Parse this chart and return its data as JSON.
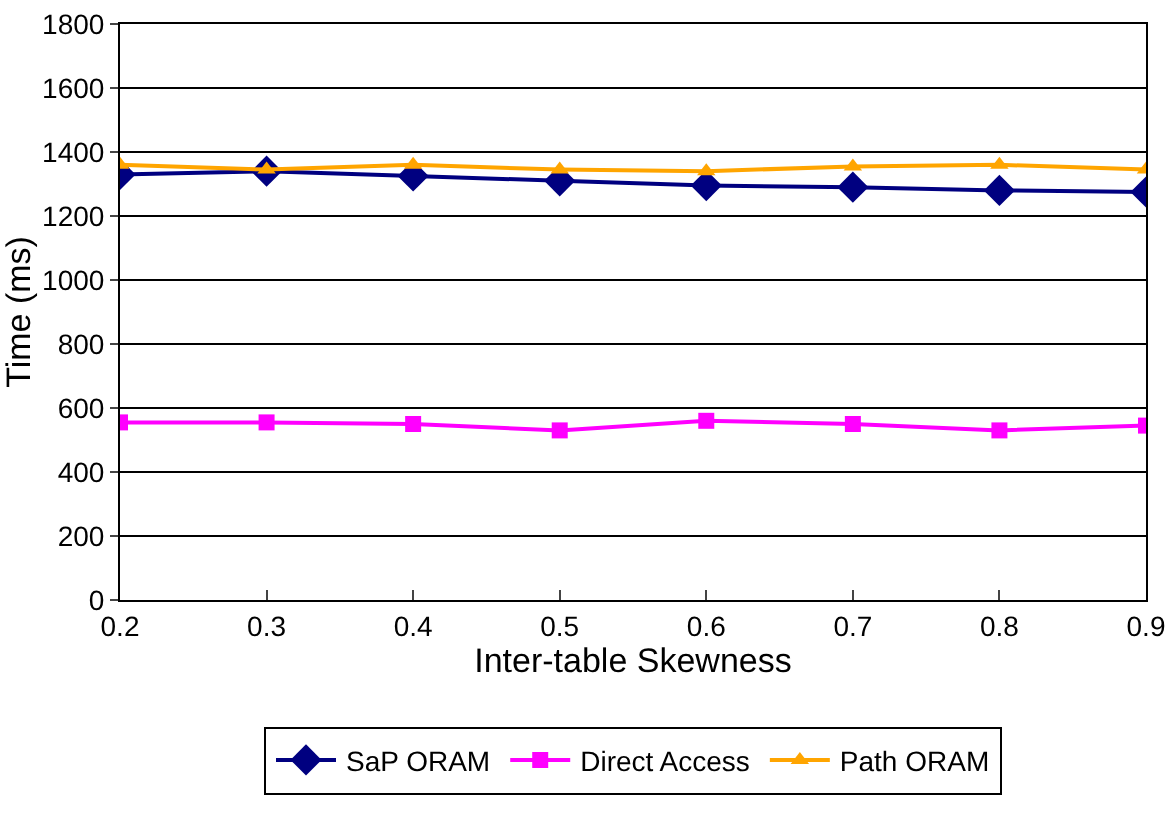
{
  "chart_data": {
    "type": "line",
    "xlabel": "Inter-table Skewness",
    "ylabel": "Time (ms)",
    "x": [
      0.2,
      0.3,
      0.4,
      0.5,
      0.6,
      0.7,
      0.8,
      0.9
    ],
    "series": [
      {
        "name": "SaP ORAM",
        "color": "#000080",
        "marker": "diamond",
        "values": [
          1330,
          1340,
          1325,
          1310,
          1295,
          1290,
          1280,
          1275
        ]
      },
      {
        "name": "Direct Access",
        "color": "#ff00ff",
        "marker": "square",
        "values": [
          555,
          555,
          550,
          530,
          560,
          550,
          530,
          545
        ]
      },
      {
        "name": "Path ORAM",
        "color": "#ffa500",
        "marker": "triangle",
        "values": [
          1360,
          1345,
          1360,
          1345,
          1340,
          1355,
          1360,
          1345
        ]
      }
    ],
    "xlim": [
      0.2,
      0.9
    ],
    "xticks": [
      0.2,
      0.3,
      0.4,
      0.5,
      0.6,
      0.7,
      0.8,
      0.9
    ],
    "ylim": [
      0,
      1800
    ],
    "yticks": [
      0,
      200,
      400,
      600,
      800,
      1000,
      1200,
      1400,
      1600,
      1800
    ],
    "grid": "y",
    "legend": "bottom"
  }
}
